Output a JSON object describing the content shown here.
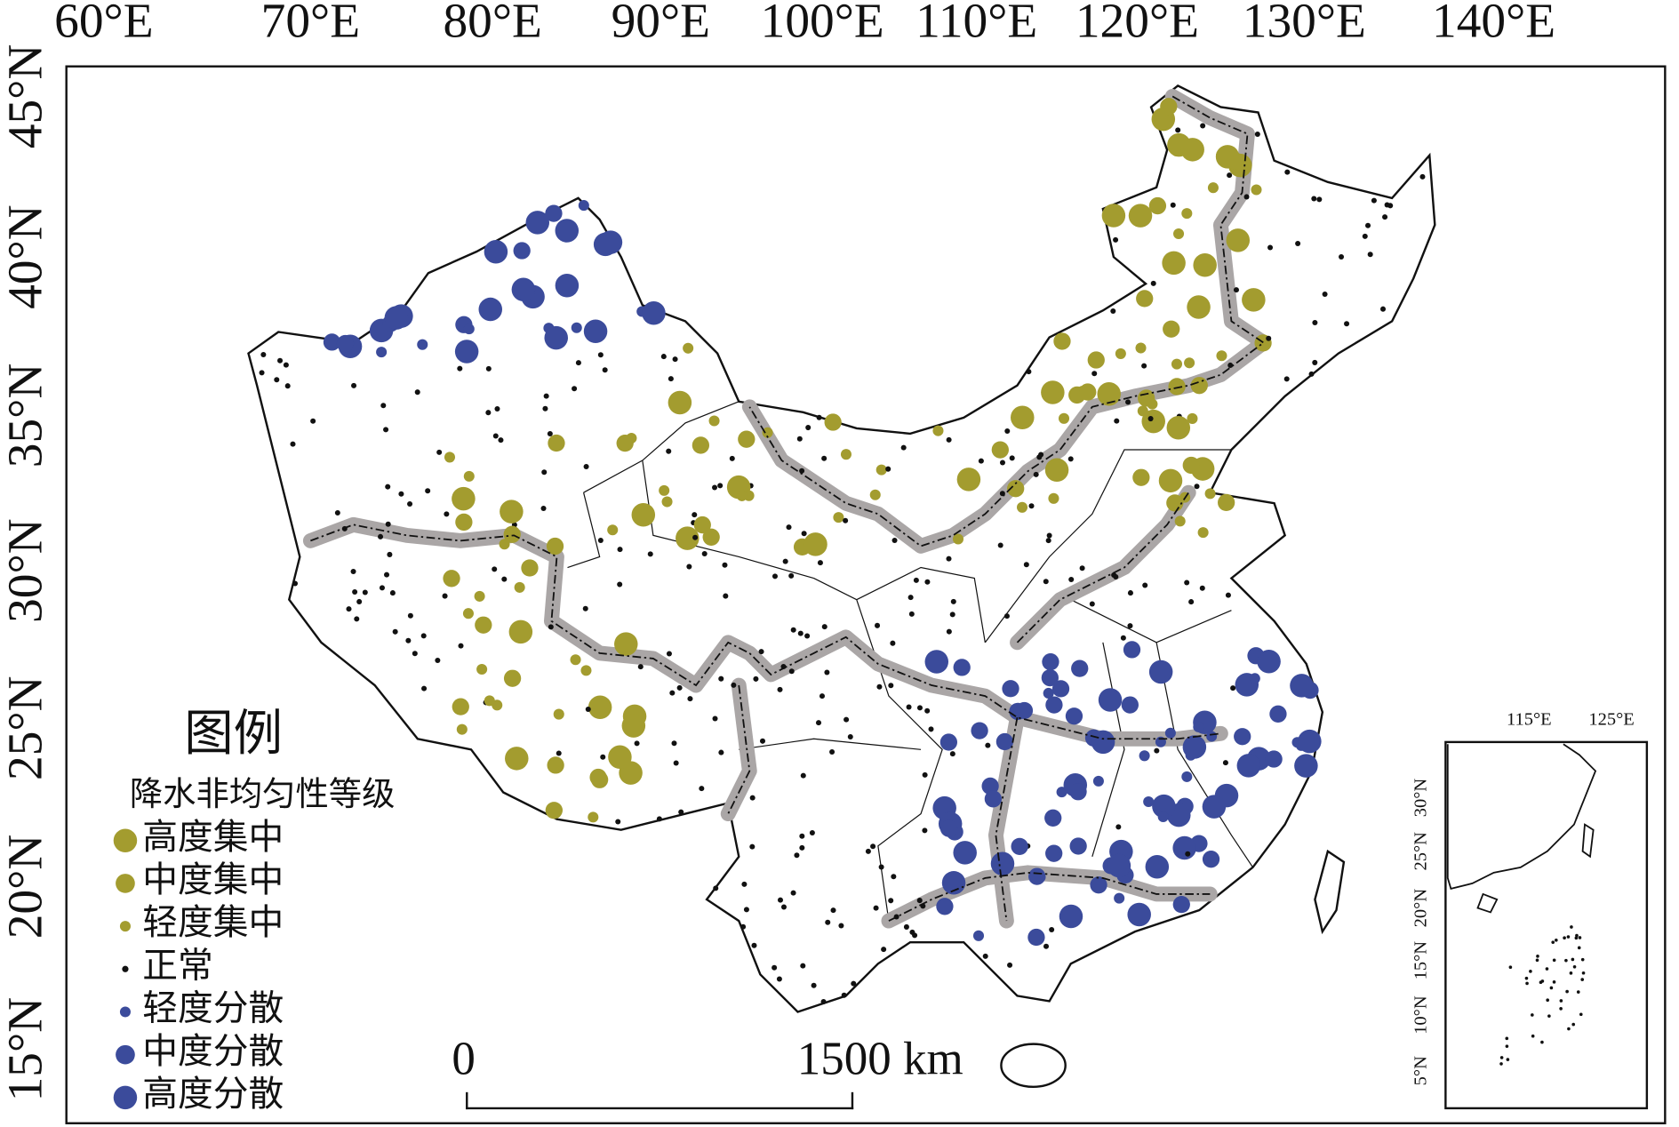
{
  "map": {
    "lon_labels": [
      "60°E",
      "70°E",
      "80°E",
      "90°E",
      "100°E",
      "110°E",
      "120°E",
      "130°E",
      "140°E"
    ],
    "lat_labels": [
      "45°N",
      "40°N",
      "35°N",
      "30°N",
      "25°N",
      "20°N",
      "15°N"
    ],
    "legend": {
      "title": "图例",
      "subtitle": "降水非均匀性等级",
      "items": [
        {
          "label": "高度集中",
          "color": "#a39c2f"
        },
        {
          "label": "中度集中",
          "color": "#a39c2f"
        },
        {
          "label": "轻度集中",
          "color": "#a39c2f"
        },
        {
          "label": "正常",
          "color": "#111111"
        },
        {
          "label": "轻度分散",
          "color": "#3b4b9b"
        },
        {
          "label": "中度分散",
          "color": "#3b4b9b"
        },
        {
          "label": "高度分散",
          "color": "#3b4b9b"
        }
      ]
    },
    "scale_bar": {
      "start": "0",
      "end": "1500 km"
    },
    "inset": {
      "lon_labels": [
        "115°E",
        "125°E"
      ],
      "lat_labels": [
        "30°N",
        "25°N",
        "20°N",
        "15°N",
        "10°N",
        "5°N"
      ]
    }
  }
}
